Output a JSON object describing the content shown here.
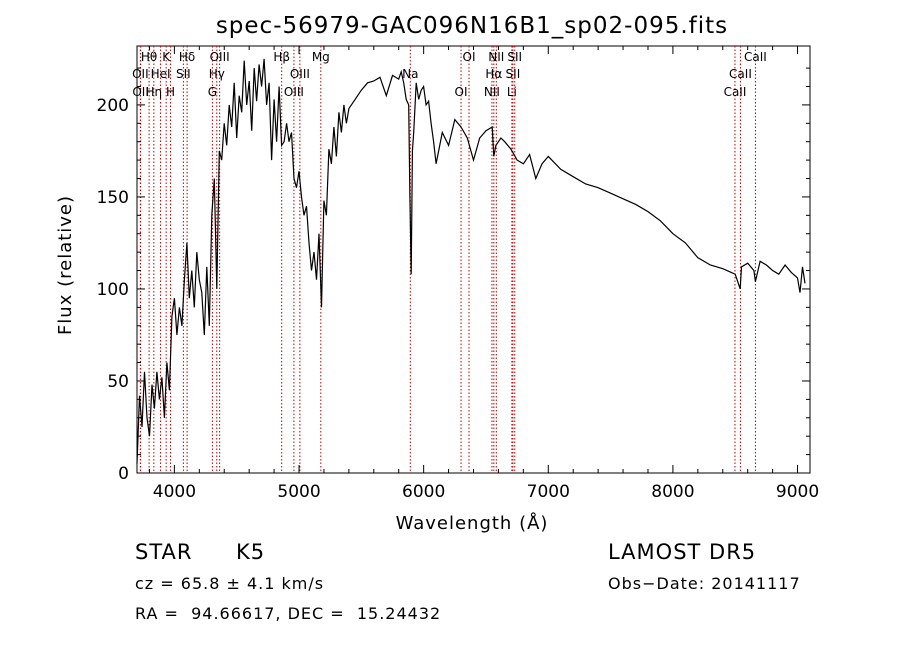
{
  "chart_data": {
    "type": "line",
    "title": "spec-56979-GAC096N16B1_sp02-095.fits",
    "xlabel": "Wavelength (Å)",
    "ylabel": "Flux (relative)",
    "xlim": [
      3700,
      9100
    ],
    "ylim": [
      0,
      232
    ],
    "xticks": [
      4000,
      5000,
      6000,
      7000,
      8000,
      9000
    ],
    "yticks": [
      0,
      50,
      100,
      150,
      200
    ],
    "grid": false,
    "series": [
      {
        "x": [
          3700,
          3720,
          3740,
          3760,
          3780,
          3800,
          3820,
          3840,
          3860,
          3880,
          3900,
          3920,
          3940,
          3960,
          3980,
          4000,
          4020,
          4040,
          4060,
          4080,
          4100,
          4120,
          4140,
          4160,
          4180,
          4200,
          4220,
          4240,
          4260,
          4280,
          4300,
          4320,
          4340,
          4360,
          4380,
          4400,
          4420,
          4440,
          4460,
          4480,
          4500,
          4520,
          4540,
          4560,
          4580,
          4600,
          4620,
          4640,
          4660,
          4680,
          4700,
          4720,
          4740,
          4760,
          4780,
          4800,
          4820,
          4840,
          4860,
          4880,
          4900,
          4920,
          4940,
          4960,
          4980,
          5000,
          5020,
          5040,
          5060,
          5080,
          5100,
          5120,
          5140,
          5160,
          5180,
          5200,
          5220,
          5240,
          5260,
          5280,
          5300,
          5320,
          5340,
          5360,
          5380,
          5400,
          5450,
          5500,
          5550,
          5600,
          5650,
          5700,
          5750,
          5800,
          5820,
          5840,
          5860,
          5880,
          5890,
          5900,
          5910,
          5920,
          5940,
          5960,
          5980,
          6000,
          6020,
          6040,
          6060,
          6080,
          6100,
          6150,
          6200,
          6250,
          6300,
          6350,
          6400,
          6450,
          6500,
          6550,
          6563,
          6580,
          6620,
          6650,
          6700,
          6750,
          6800,
          6850,
          6900,
          6950,
          7000,
          7100,
          7200,
          7300,
          7400,
          7500,
          7600,
          7700,
          7800,
          7900,
          8000,
          8100,
          8200,
          8300,
          8400,
          8500,
          8540,
          8550,
          8600,
          8650,
          8662,
          8700,
          8750,
          8800,
          8850,
          8900,
          8950,
          9000,
          9020,
          9040,
          9060
        ],
        "y": [
          5,
          42,
          25,
          55,
          30,
          20,
          48,
          35,
          55,
          40,
          52,
          30,
          60,
          45,
          85,
          95,
          75,
          90,
          80,
          105,
          125,
          95,
          110,
          90,
          120,
          105,
          98,
          75,
          112,
          80,
          140,
          160,
          100,
          175,
          170,
          190,
          178,
          200,
          188,
          212,
          182,
          205,
          196,
          224,
          200,
          213,
          186,
          220,
          202,
          222,
          210,
          225,
          200,
          212,
          170,
          203,
          180,
          210,
          178,
          180,
          190,
          180,
          185,
          160,
          155,
          164,
          150,
          140,
          145,
          125,
          110,
          120,
          105,
          130,
          90,
          148,
          140,
          176,
          168,
          188,
          172,
          196,
          185,
          200,
          190,
          198,
          203,
          208,
          212,
          213,
          215,
          205,
          216,
          214,
          218,
          212,
          203,
          200,
          150,
          108,
          175,
          185,
          212,
          203,
          208,
          210,
          200,
          202,
          190,
          180,
          168,
          185,
          178,
          192,
          188,
          182,
          170,
          182,
          186,
          188,
          172,
          178,
          182,
          180,
          176,
          170,
          168,
          173,
          160,
          168,
          172,
          165,
          161,
          157,
          155,
          152,
          149,
          146,
          142,
          137,
          130,
          125,
          117,
          113,
          111,
          108,
          100,
          112,
          114,
          110,
          104,
          115,
          113,
          110,
          108,
          113,
          109,
          106,
          98,
          112,
          103
        ]
      }
    ],
    "line_labels": [
      {
        "name": "Hθ",
        "x": 3797
      },
      {
        "name": "OII",
        "x": 3727
      },
      {
        "name": "OII",
        "x": 3729
      },
      {
        "name": "K",
        "x": 3934
      },
      {
        "name": "HeI",
        "x": 3889
      },
      {
        "name": "Hη",
        "x": 3835
      },
      {
        "name": "Hδ",
        "x": 4102
      },
      {
        "name": "SII",
        "x": 4072
      },
      {
        "name": "H",
        "x": 3969
      },
      {
        "name": "OIII",
        "x": 4363
      },
      {
        "name": "Hγ",
        "x": 4340
      },
      {
        "name": "G",
        "x": 4305
      },
      {
        "name": "Hβ",
        "x": 4861
      },
      {
        "name": "OIII",
        "x": 5007
      },
      {
        "name": "OIII",
        "x": 4959
      },
      {
        "name": "Mg",
        "x": 5175
      },
      {
        "name": "Na",
        "x": 5893
      },
      {
        "name": "OI",
        "x": 6300
      },
      {
        "name": "OI",
        "x": 6364
      },
      {
        "name": "Hα",
        "x": 6563
      },
      {
        "name": "NII",
        "x": 6548
      },
      {
        "name": "NII",
        "x": 6583
      },
      {
        "name": "SII",
        "x": 6716
      },
      {
        "name": "Li",
        "x": 6708
      },
      {
        "name": "SII",
        "x": 6731
      },
      {
        "name": "CaII",
        "x": 8542
      },
      {
        "name": "CaII",
        "x": 8498
      },
      {
        "name": "CaII",
        "x": 8662
      }
    ],
    "line_marker_color": "#c00000"
  },
  "info": {
    "class_label": "STAR",
    "subclass": "K5",
    "survey": "LAMOST DR5",
    "cz": "cz = 65.8 ± 4.1 km/s",
    "obs_date": "Obs−Date: 20141117",
    "coords": "RA =  94.66617, DEC =  15.24432"
  }
}
